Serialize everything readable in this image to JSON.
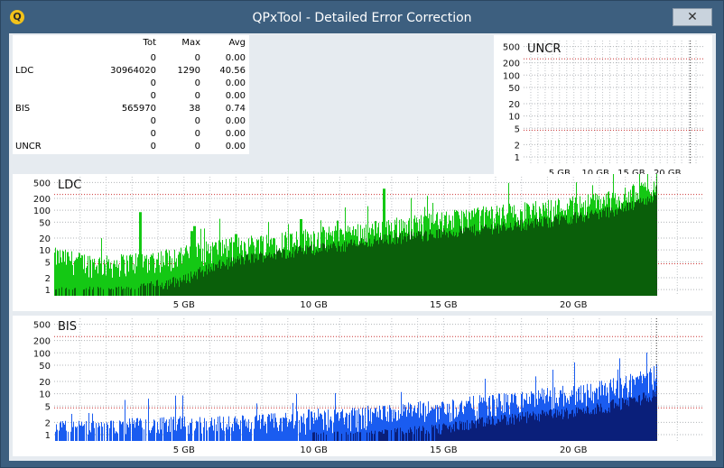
{
  "window": {
    "title": "QPxTool - Detailed Error Correction",
    "icon_letter": "Q",
    "close_glyph": "✕"
  },
  "stats_table": {
    "headers": [
      "Tot",
      "Max",
      "Avg"
    ],
    "rows": [
      {
        "label": "",
        "tot": "0",
        "max": "0",
        "avg": "0.00"
      },
      {
        "label": "LDC",
        "tot": "30964020",
        "max": "1290",
        "avg": "40.56"
      },
      {
        "label": "",
        "tot": "0",
        "max": "0",
        "avg": "0.00"
      },
      {
        "label": "",
        "tot": "0",
        "max": "0",
        "avg": "0.00"
      },
      {
        "label": "BIS",
        "tot": "565970",
        "max": "38",
        "avg": "0.74"
      },
      {
        "label": "",
        "tot": "0",
        "max": "0",
        "avg": "0.00"
      },
      {
        "label": "",
        "tot": "0",
        "max": "0",
        "avg": "0.00"
      },
      {
        "label": "UNCR",
        "tot": "0",
        "max": "0",
        "avg": "0.00"
      }
    ]
  },
  "colors": {
    "ldc_fill": "#14c814",
    "ldc_dark": "#0a5f0a",
    "bis_fill": "#1a5cf0",
    "bis_dark": "#0a1f7a",
    "threshold_line": "#cc3333",
    "grid": "#9aa0a6"
  },
  "chart_data": [
    {
      "type": "area",
      "title": "UNCR",
      "scale": "log",
      "yticks": [
        "500",
        "200",
        "100",
        "50",
        "20",
        "10",
        "5",
        "2",
        "1"
      ],
      "ytick_values": [
        500,
        200,
        100,
        50,
        20,
        10,
        5,
        2,
        1
      ],
      "xticks": [
        "5 GB",
        "10 GB",
        "15 GB",
        "20 GB"
      ],
      "xtick_values": [
        5,
        10,
        15,
        20
      ],
      "xlim": [
        0,
        25
      ],
      "ylim": [
        0.7,
        700
      ],
      "threshold_values": [
        250,
        4.5
      ],
      "disc_end": 23.2,
      "series": []
    },
    {
      "type": "area",
      "title": "LDC",
      "scale": "log",
      "yticks": [
        "500",
        "200",
        "100",
        "50",
        "20",
        "10",
        "5",
        "2",
        "1"
      ],
      "ytick_values": [
        500,
        200,
        100,
        50,
        20,
        10,
        5,
        2,
        1
      ],
      "xticks": [
        "5 GB",
        "10 GB",
        "15 GB",
        "20 GB"
      ],
      "xtick_values": [
        5,
        10,
        15,
        20
      ],
      "xlim": [
        0,
        25
      ],
      "ylim": [
        0.7,
        700
      ],
      "threshold_values": [
        250,
        4.5
      ],
      "disc_end": 23.2,
      "x": [
        0,
        1,
        2,
        3,
        4,
        5,
        6,
        7,
        8,
        9,
        10,
        11,
        12,
        13,
        14,
        15,
        16,
        17,
        18,
        19,
        20,
        21,
        22,
        23,
        23.2
      ],
      "values_max": [
        8,
        6,
        5,
        6,
        7,
        9,
        12,
        15,
        18,
        22,
        25,
        30,
        35,
        45,
        55,
        65,
        80,
        95,
        110,
        130,
        160,
        200,
        260,
        450,
        700
      ],
      "values_avg": [
        1,
        1,
        1,
        1,
        1.5,
        2,
        4,
        6,
        8,
        10,
        12,
        14,
        18,
        22,
        26,
        30,
        36,
        42,
        50,
        60,
        75,
        95,
        130,
        220,
        400
      ],
      "spikes": [
        {
          "x": 3.3,
          "value": 90
        },
        {
          "x": 5.3,
          "value": 30
        },
        {
          "x": 5.4,
          "value": 40
        },
        {
          "x": 9.5,
          "value": 60
        },
        {
          "x": 12.7,
          "value": 350
        },
        {
          "x": 10.9,
          "value": 55
        },
        {
          "x": 7.0,
          "value": 25
        }
      ]
    },
    {
      "type": "area",
      "title": "BIS",
      "scale": "log",
      "yticks": [
        "500",
        "200",
        "100",
        "50",
        "20",
        "10",
        "5",
        "2",
        "1"
      ],
      "ytick_values": [
        500,
        200,
        100,
        50,
        20,
        10,
        5,
        2,
        1
      ],
      "xticks": [
        "5 GB",
        "10 GB",
        "15 GB",
        "20 GB"
      ],
      "xtick_values": [
        5,
        10,
        15,
        20
      ],
      "xlim": [
        0,
        25
      ],
      "ylim": [
        0.7,
        700
      ],
      "threshold_values": [
        250,
        4.5
      ],
      "disc_end": 23.2,
      "x": [
        0,
        1,
        2,
        3,
        4,
        5,
        6,
        7,
        8,
        9,
        10,
        11,
        12,
        13,
        14,
        15,
        16,
        17,
        18,
        19,
        20,
        21,
        22,
        23,
        23.2
      ],
      "values_max": [
        1.5,
        1.5,
        1.5,
        1.8,
        1.8,
        2,
        2,
        2,
        2.2,
        2.5,
        3,
        3,
        3.5,
        4,
        4.5,
        5,
        6,
        7,
        8,
        10,
        12,
        15,
        20,
        30,
        38
      ],
      "values_avg": [
        0,
        0,
        0,
        0,
        0,
        0,
        0,
        0,
        0,
        0,
        1,
        1,
        1,
        1.2,
        1.4,
        1.6,
        2,
        2.5,
        3,
        3.5,
        4,
        5,
        7,
        10,
        14
      ],
      "spikes": [
        {
          "x": 3.3,
          "value": 2.2
        },
        {
          "x": 12.7,
          "value": 5
        }
      ]
    }
  ]
}
